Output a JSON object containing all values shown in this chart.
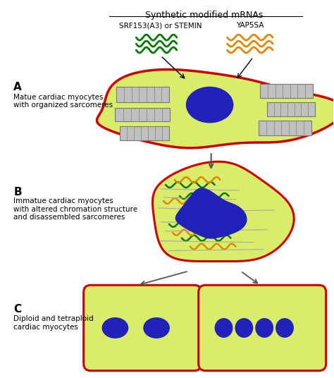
{
  "title": "Synthetic modified mRNAs",
  "label_A": "A",
  "label_B": "B",
  "label_C": "C",
  "text_A": "Matue cardiac myocytes\nwith organized sarcomeres",
  "text_B": "Immatue cardiac myocytes\nwith altered chromation structure\nand disassembled sarcomeres",
  "text_C": "Diploid and tetraploid\ncardiac myocytes",
  "label_green": "SRF153(A3) or STEMIN",
  "label_orange": "YAP5SA",
  "cell_fill": "#d9ed6a",
  "cell_edge": "#cc0000",
  "nucleus_fill": "#2222bb",
  "sarcomere_fill": "#b8b8b8",
  "sarcomere_edge": "#666666",
  "green_color": "#007700",
  "orange_color": "#dd8800",
  "background": "#ffffff"
}
